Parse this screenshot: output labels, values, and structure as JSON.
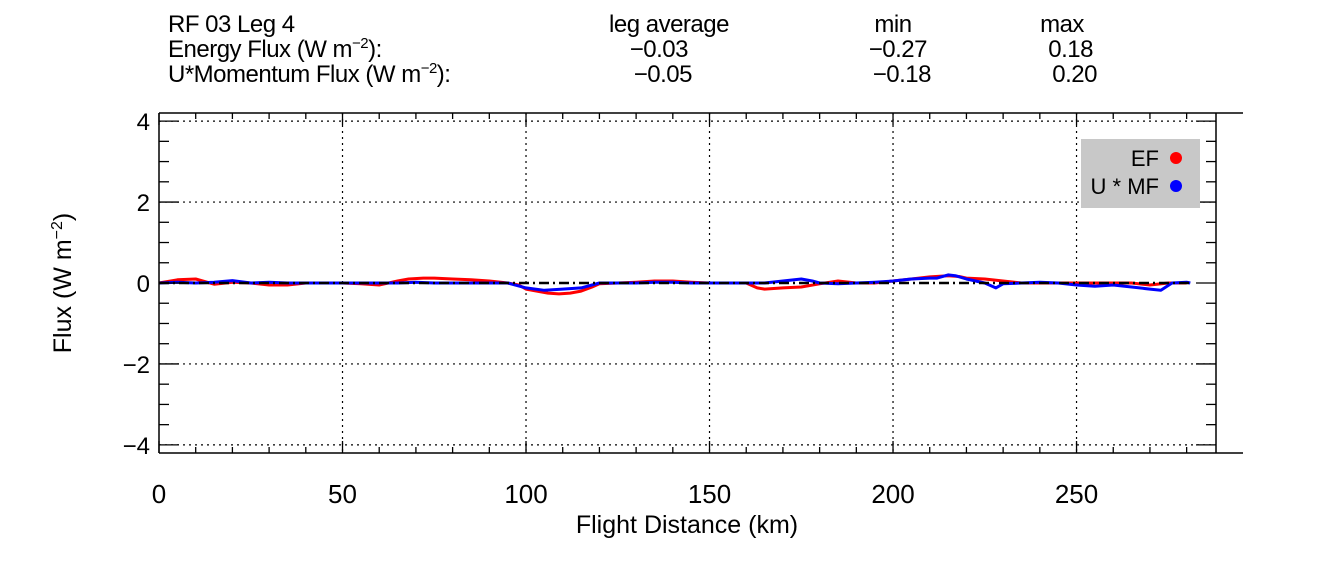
{
  "header": {
    "title": "RF 03 Leg 4",
    "col_avg_label": "leg average",
    "col_min_label": "min",
    "col_max_label": "max",
    "rows": [
      {
        "label_prefix": "Energy Flux (W m",
        "label_exp": "−2",
        "label_suffix": "):",
        "avg": "−0.03",
        "min": "−0.27",
        "max": "0.18"
      },
      {
        "label_prefix": "U*Momentum Flux (W m",
        "label_exp": "−2",
        "label_suffix": "):",
        "avg": "−0.05",
        "min": "−0.18",
        "max": "0.20"
      }
    ]
  },
  "chart_data": {
    "type": "line",
    "xlabel": "Flight Distance (km)",
    "ylabel_prefix": "Flux (W m",
    "ylabel_exp": "−2",
    "ylabel_suffix": ")",
    "xlim": [
      0,
      288
    ],
    "ylim": [
      -4.2,
      4.2
    ],
    "x_ticks": [
      0,
      50,
      100,
      150,
      200,
      250
    ],
    "x_tick_labels": [
      "0",
      "50",
      "100",
      "150",
      "200",
      "250"
    ],
    "y_ticks": [
      -4,
      -2,
      0,
      2,
      4
    ],
    "y_tick_labels": [
      "−4",
      "−2",
      "0",
      "2",
      "4"
    ],
    "grid": "dotted at major ticks",
    "legend_position": "top-right",
    "series": [
      {
        "name": "EF",
        "color": "#ff0000",
        "x": [
          0,
          5,
          10,
          15,
          20,
          25,
          30,
          35,
          40,
          45,
          50,
          55,
          60,
          65,
          68,
          72,
          75,
          80,
          85,
          90,
          95,
          98,
          100,
          103,
          106,
          109,
          112,
          115,
          118,
          120,
          125,
          130,
          135,
          140,
          145,
          150,
          155,
          160,
          163,
          165,
          170,
          175,
          180,
          185,
          190,
          195,
          200,
          205,
          210,
          215,
          218,
          220,
          225,
          230,
          235,
          240,
          245,
          250,
          255,
          260,
          265,
          270,
          275,
          280
        ],
        "y": [
          0.0,
          0.08,
          0.1,
          -0.03,
          0.02,
          0.0,
          -0.05,
          -0.05,
          0.0,
          0.0,
          0.0,
          -0.02,
          -0.05,
          0.05,
          0.1,
          0.12,
          0.12,
          0.1,
          0.08,
          0.05,
          0.0,
          -0.05,
          -0.15,
          -0.2,
          -0.25,
          -0.27,
          -0.25,
          -0.2,
          -0.1,
          -0.02,
          0.0,
          0.02,
          0.05,
          0.05,
          0.02,
          0.0,
          0.0,
          0.0,
          -0.12,
          -0.15,
          -0.12,
          -0.1,
          -0.02,
          0.05,
          0.0,
          0.0,
          0.05,
          0.1,
          0.15,
          0.18,
          0.16,
          0.12,
          0.1,
          0.05,
          0.0,
          0.0,
          0.0,
          0.0,
          0.0,
          0.0,
          0.0,
          -0.05,
          0.0,
          0.0
        ]
      },
      {
        "name": "U * MF",
        "color": "#0000ff",
        "x": [
          0,
          5,
          10,
          15,
          20,
          25,
          30,
          35,
          40,
          45,
          50,
          55,
          60,
          65,
          70,
          75,
          80,
          85,
          90,
          95,
          100,
          105,
          110,
          115,
          120,
          125,
          130,
          135,
          140,
          145,
          150,
          155,
          160,
          165,
          170,
          175,
          178,
          180,
          185,
          190,
          195,
          200,
          205,
          210,
          212,
          215,
          217,
          220,
          225,
          228,
          230,
          235,
          240,
          245,
          250,
          255,
          260,
          265,
          270,
          273,
          276,
          280,
          281
        ],
        "y": [
          0.0,
          0.02,
          0.0,
          0.02,
          0.06,
          0.0,
          0.02,
          0.0,
          0.0,
          0.0,
          0.0,
          0.0,
          0.0,
          0.0,
          0.02,
          0.0,
          0.0,
          0.0,
          0.0,
          0.0,
          -0.12,
          -0.18,
          -0.15,
          -0.12,
          0.0,
          0.0,
          0.0,
          0.02,
          0.02,
          0.0,
          0.0,
          0.0,
          0.0,
          0.0,
          0.05,
          0.1,
          0.05,
          0.0,
          -0.02,
          0.0,
          0.02,
          0.05,
          0.1,
          0.12,
          0.12,
          0.2,
          0.18,
          0.1,
          0.0,
          -0.12,
          -0.02,
          0.0,
          0.02,
          0.0,
          -0.05,
          -0.08,
          -0.05,
          -0.1,
          -0.15,
          -0.18,
          0.0,
          0.02,
          0.0
        ]
      },
      {
        "name": "",
        "color": "#000000",
        "x": [
          0,
          281
        ],
        "y": [
          0,
          0
        ]
      }
    ]
  }
}
